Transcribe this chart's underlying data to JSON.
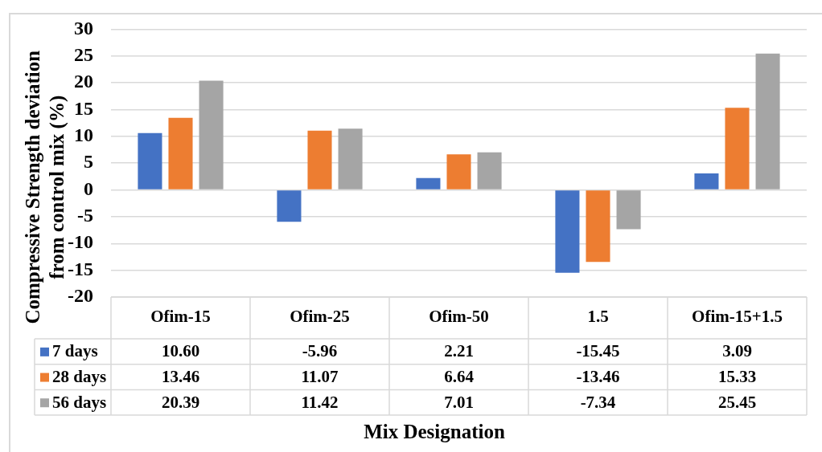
{
  "chart_data": {
    "type": "bar",
    "xlabel": "Mix Designation",
    "ylabel": "Compressive Strength deviation from control mix (%)",
    "categories": [
      "Ofim-15",
      "Ofim-25",
      "Ofim-50",
      "1.5",
      "Ofim-15+1.5"
    ],
    "series": [
      {
        "name": "7 days",
        "color": "#4472c4",
        "values": [
          10.6,
          -5.96,
          2.21,
          -15.45,
          3.09
        ],
        "value_labels": [
          "10.60",
          "-5.96",
          "2.21",
          "-15.45",
          "3.09"
        ]
      },
      {
        "name": "28 days",
        "color": "#ed7d31",
        "values": [
          13.46,
          11.07,
          6.64,
          -13.46,
          15.33
        ],
        "value_labels": [
          "13.46",
          "11.07",
          "6.64",
          "-13.46",
          "15.33"
        ]
      },
      {
        "name": "56 days",
        "color": "#a5a5a5",
        "values": [
          20.39,
          11.42,
          7.01,
          -7.34,
          25.45
        ],
        "value_labels": [
          "20.39",
          "11.42",
          "7.01",
          "-7.34",
          "25.45"
        ]
      }
    ],
    "ylim": [
      -20,
      30
    ],
    "yticks": [
      -20,
      -15,
      -10,
      -5,
      0,
      5,
      10,
      15,
      20,
      25,
      30
    ],
    "grid": "y",
    "legend": "bottom"
  }
}
